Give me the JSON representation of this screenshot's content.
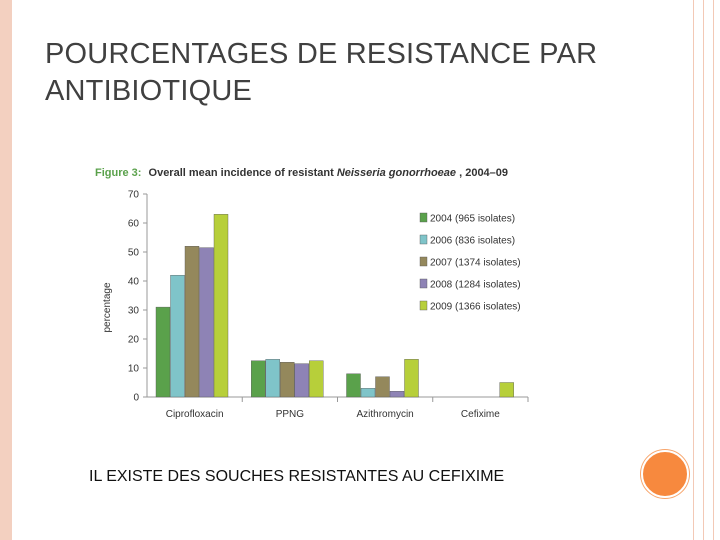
{
  "slide": {
    "title": "POURCENTAGES DE RESISTANCE PAR ANTIBIOTIQUE",
    "caption": "IL EXISTE DES SOUCHES RESISTANTES AU CEFIXIME"
  },
  "colors": {
    "accent_bar": "#f3d0c0",
    "orange_dot": "#f7893e"
  },
  "chart_data": {
    "type": "bar",
    "figure_label": "Figure 3:",
    "title_prefix": "Overall mean incidence of resistant ",
    "title_italic": "Neisseria gonorrhoeae",
    "title_suffix": ", 2004–09",
    "title_color": "#5aa14b",
    "xlabel": "",
    "ylabel": "percentage",
    "ylim": [
      0,
      70
    ],
    "yticks": [
      0,
      10,
      20,
      30,
      40,
      50,
      60,
      70
    ],
    "grid": false,
    "legend_position": "top-right",
    "categories": [
      "Ciprofloxacin",
      "PPNG",
      "Azithromycin",
      "Cefixime"
    ],
    "series": [
      {
        "name": "2004 (965 isolates)",
        "color": "#5aa14b",
        "values": [
          31,
          12.5,
          8,
          0
        ]
      },
      {
        "name": "2006 (836 isolates)",
        "color": "#7fc4c9",
        "values": [
          42,
          13,
          3,
          0
        ]
      },
      {
        "name": "2007 (1374 isolates)",
        "color": "#94885c",
        "values": [
          52,
          12,
          7,
          0
        ]
      },
      {
        "name": "2008 (1284 isolates)",
        "color": "#8e83b5",
        "values": [
          51.5,
          11.5,
          2,
          0
        ]
      },
      {
        "name": "2009 (1366 isolates)",
        "color": "#b7cf3a",
        "values": [
          63,
          12.5,
          13,
          5
        ]
      }
    ]
  }
}
